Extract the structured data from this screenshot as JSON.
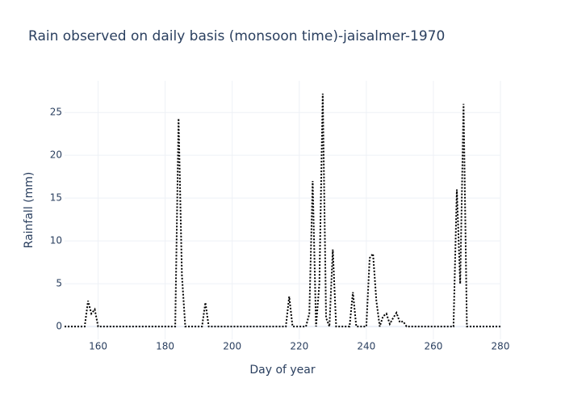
{
  "chart_data": {
    "type": "line",
    "title": "Rain observed on daily basis (monsoon time)-jaisalmer-1970",
    "x_label": "Day of year",
    "y_label": "Rainfall (mm)",
    "x": [
      150,
      151,
      152,
      153,
      154,
      155,
      156,
      157,
      158,
      159,
      160,
      161,
      162,
      163,
      164,
      165,
      166,
      167,
      168,
      169,
      170,
      171,
      172,
      173,
      174,
      175,
      176,
      177,
      178,
      179,
      180,
      181,
      182,
      183,
      184,
      185,
      186,
      187,
      188,
      189,
      190,
      191,
      192,
      193,
      194,
      195,
      196,
      197,
      198,
      199,
      200,
      201,
      202,
      203,
      204,
      205,
      206,
      207,
      208,
      209,
      210,
      211,
      212,
      213,
      214,
      215,
      216,
      217,
      218,
      219,
      220,
      221,
      222,
      223,
      224,
      225,
      226,
      227,
      228,
      229,
      230,
      231,
      232,
      233,
      234,
      235,
      236,
      237,
      238,
      239,
      240,
      241,
      242,
      243,
      244,
      245,
      246,
      247,
      248,
      249,
      250,
      251,
      252,
      253,
      254,
      255,
      256,
      257,
      258,
      259,
      260,
      261,
      262,
      263,
      264,
      265,
      266,
      267,
      268,
      269,
      270,
      271,
      272,
      273,
      274,
      275,
      276,
      277,
      278,
      279,
      280
    ],
    "values": [
      0,
      0,
      0,
      0,
      0,
      0,
      0,
      3,
      1.5,
      2,
      0,
      0,
      0,
      0,
      0,
      0,
      0,
      0,
      0,
      0,
      0,
      0,
      0,
      0,
      0,
      0,
      0,
      0,
      0,
      0,
      0,
      0,
      0,
      0,
      24.3,
      6,
      0,
      0,
      0,
      0,
      0,
      0,
      2.8,
      0,
      0,
      0,
      0,
      0,
      0,
      0,
      0,
      0,
      0,
      0,
      0,
      0,
      0,
      0,
      0,
      0,
      0,
      0,
      0,
      0,
      0,
      0,
      0,
      3.5,
      0,
      0,
      0,
      0,
      0,
      1.5,
      17,
      0,
      5,
      27.2,
      1,
      0,
      9,
      0,
      0,
      0,
      0,
      0,
      4,
      0,
      0,
      0,
      0,
      8,
      8.5,
      3,
      0,
      1.2,
      1.5,
      0.3,
      1,
      1.6,
      0.5,
      0.6,
      0,
      0,
      0,
      0,
      0,
      0,
      0,
      0,
      0,
      0,
      0,
      0,
      0,
      0,
      0,
      16,
      5,
      26,
      0,
      0,
      0,
      0,
      0,
      0,
      0,
      0,
      0,
      0,
      0
    ],
    "color": "#000000",
    "dash": true,
    "xlim": [
      150,
      280
    ],
    "xticks": [
      160,
      180,
      200,
      220,
      240,
      260,
      280
    ],
    "ylim": [
      -1.5,
      28.7
    ],
    "yticks": [
      0,
      5,
      10,
      15,
      20,
      25
    ],
    "grid": true
  }
}
